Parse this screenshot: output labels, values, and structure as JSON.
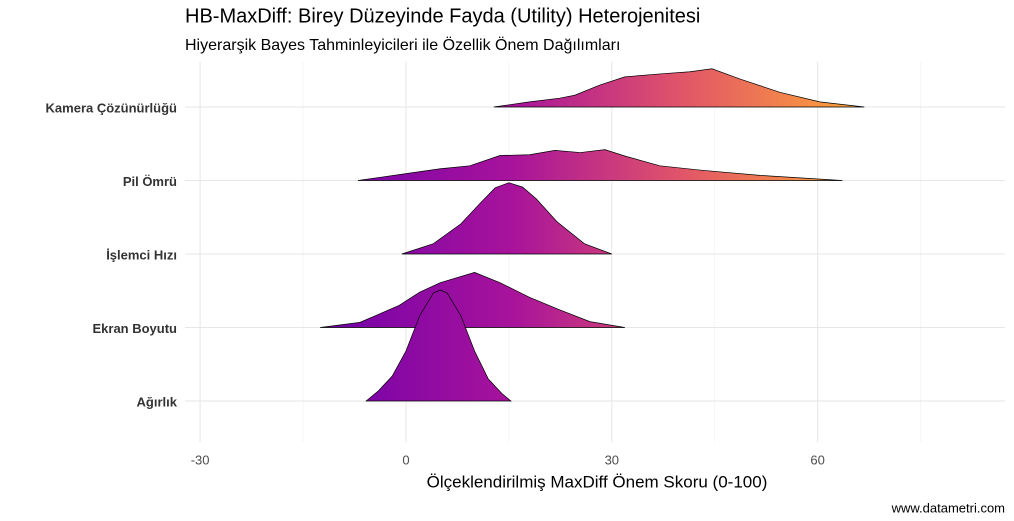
{
  "chart_data": {
    "type": "ridgeline",
    "title": "HB-MaxDiff: Birey Düzeyinde Fayda (Utility) Heterojenitesi",
    "subtitle": "Hiyerarşik Bayes Tahminleyicileri ile Özellik Önem Dağılımları",
    "x_label": "Ölçeklendirilmiş MaxDiff Önem Skoru (0-100)",
    "caption": "www.datametri.com",
    "xlim": [
      -32.2,
      87.3
    ],
    "xticks": [
      -30,
      0,
      30,
      60
    ],
    "minor_xticks": [
      -15,
      15,
      45,
      75
    ],
    "grid": true,
    "fill_colors": [
      "#4c02a1",
      "#7a04a8",
      "#a8139b",
      "#e0536a",
      "#fb9c3c",
      "#f0f921"
    ],
    "outline_color": "#000000",
    "series": [
      {
        "name": "Kamera Çözünürlüğü",
        "x": [
          12.8,
          18,
          22.4,
          24.6,
          28.3,
          31.9,
          37,
          41.4,
          44.6,
          48.7,
          54.5,
          60.3,
          66.8
        ],
        "density": [
          0,
          0.07,
          0.12,
          0.16,
          0.3,
          0.41,
          0.45,
          0.48,
          0.52,
          0.38,
          0.2,
          0.07,
          0
        ]
      },
      {
        "name": "Pil Ömrü",
        "x": [
          -7,
          -1,
          5,
          9.3,
          13.7,
          18,
          21.7,
          25.4,
          29,
          32,
          37,
          43,
          51.6,
          63.6
        ],
        "density": [
          0,
          0.08,
          0.16,
          0.2,
          0.34,
          0.35,
          0.41,
          0.38,
          0.42,
          0.33,
          0.2,
          0.14,
          0.07,
          0
        ]
      },
      {
        "name": "İşlemci Hızı",
        "x": [
          -0.6,
          4,
          8,
          11,
          13,
          15,
          17,
          19,
          22,
          26,
          30
        ],
        "density": [
          0,
          0.14,
          0.41,
          0.71,
          0.9,
          0.97,
          0.91,
          0.75,
          0.44,
          0.14,
          0
        ]
      },
      {
        "name": "Ekran Boyutu",
        "x": [
          -12.5,
          -6.7,
          -1,
          2,
          5,
          10,
          13.7,
          18,
          22.4,
          26.8,
          31.9
        ],
        "density": [
          0,
          0.07,
          0.3,
          0.48,
          0.61,
          0.75,
          0.61,
          0.41,
          0.24,
          0.08,
          0
        ]
      },
      {
        "name": "Ağırlık",
        "x": [
          -5.8,
          -4,
          -2,
          0,
          2,
          4,
          5,
          6,
          8,
          10,
          12,
          14,
          15.3
        ],
        "density": [
          0,
          0.14,
          0.34,
          0.68,
          1.16,
          1.47,
          1.51,
          1.47,
          1.16,
          0.68,
          0.3,
          0.1,
          0
        ]
      }
    ]
  }
}
